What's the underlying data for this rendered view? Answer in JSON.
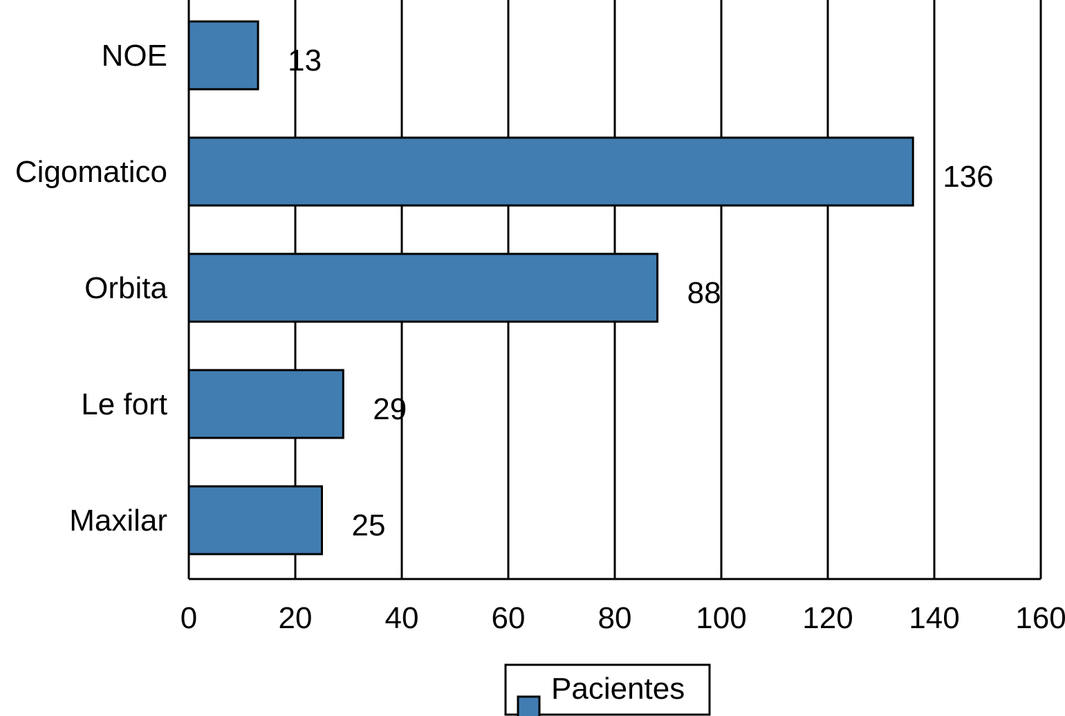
{
  "chart_data": {
    "type": "bar",
    "orientation": "horizontal",
    "categories": [
      "NOE",
      "Cigomatico",
      "Orbita",
      "Le fort",
      "Maxilar"
    ],
    "series": [
      {
        "name": "Pacientes",
        "values": [
          13,
          136,
          88,
          29,
          25
        ],
        "color": "#417db1"
      }
    ],
    "xlim": [
      0,
      160
    ],
    "xticks": [
      0,
      20,
      40,
      60,
      80,
      100,
      120,
      140,
      160
    ],
    "grid": "vertical",
    "legend_position": "bottom-center",
    "title": "",
    "xlabel": "",
    "ylabel": ""
  }
}
